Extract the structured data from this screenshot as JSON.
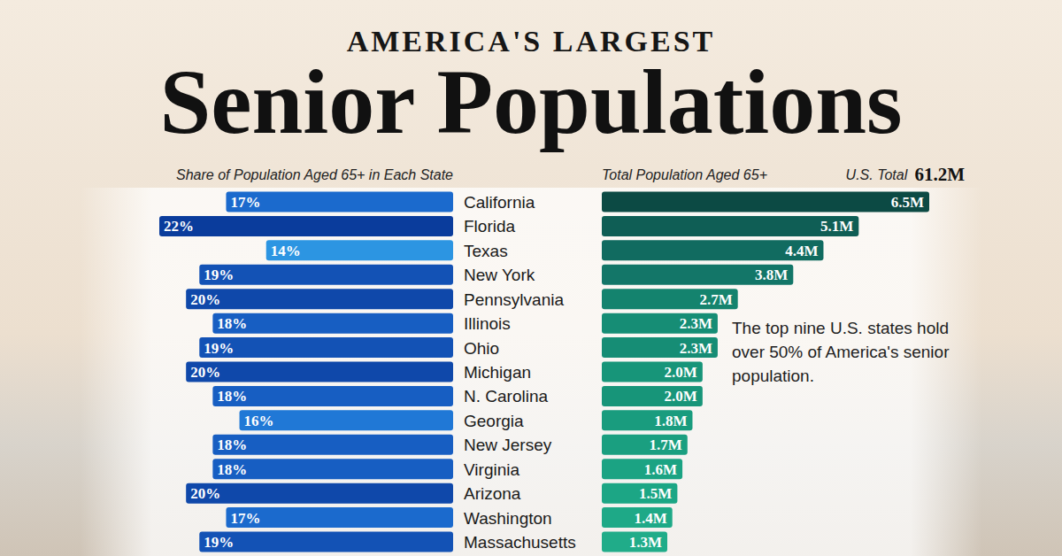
{
  "chart_data": {
    "type": "bar",
    "orientation": "horizontal",
    "data_labels": true,
    "subtitle": "AMERICA'S LARGEST",
    "title": "Senior Populations",
    "total_label": "U.S. Total",
    "total_value": "61.2M",
    "annotation": "The top nine U.S. states hold over 50% of America's senior population.",
    "categories": [
      "California",
      "Florida",
      "Texas",
      "New York",
      "Pennsylvania",
      "Illinois",
      "Ohio",
      "Michigan",
      "N. Carolina",
      "Georgia",
      "New Jersey",
      "Virginia",
      "Arizona",
      "Washington",
      "Massachusetts"
    ],
    "series": [
      {
        "name": "Share of Population Aged 65+ in Each State",
        "values": [
          17,
          22,
          14,
          19,
          20,
          18,
          19,
          20,
          18,
          16,
          18,
          18,
          20,
          17,
          19
        ],
        "value_labels": [
          "17%",
          "22%",
          "14%",
          "19%",
          "20%",
          "18%",
          "19%",
          "20%",
          "18%",
          "16%",
          "18%",
          "18%",
          "20%",
          "17%",
          "19%"
        ],
        "colors": [
          "#1b6acd",
          "#0a3c9c",
          "#2c95e2",
          "#1352b5",
          "#0f48aa",
          "#175ec2",
          "#1352b5",
          "#0f48aa",
          "#175ec2",
          "#2078d6",
          "#175ec2",
          "#175ec2",
          "#0f48aa",
          "#1b6acd",
          "#1352b5"
        ]
      },
      {
        "name": "Total Population Aged 65+",
        "values": [
          6.5,
          5.1,
          4.4,
          3.8,
          2.7,
          2.3,
          2.3,
          2.0,
          2.0,
          1.8,
          1.7,
          1.6,
          1.5,
          1.4,
          1.3
        ],
        "value_labels": [
          "6.5M",
          "5.1M",
          "4.4M",
          "3.8M",
          "2.7M",
          "2.3M",
          "2.3M",
          "2.0M",
          "2.0M",
          "1.8M",
          "1.7M",
          "1.6M",
          "1.5M",
          "1.4M",
          "1.3M"
        ],
        "colors": [
          "#0c4a44",
          "#0f5e55",
          "#116b60",
          "#137668",
          "#14836e",
          "#168d75",
          "#168d75",
          "#179579",
          "#179579",
          "#199c7e",
          "#1a9f80",
          "#1ba383",
          "#1ca685",
          "#1ea987",
          "#20ac89"
        ]
      }
    ]
  }
}
